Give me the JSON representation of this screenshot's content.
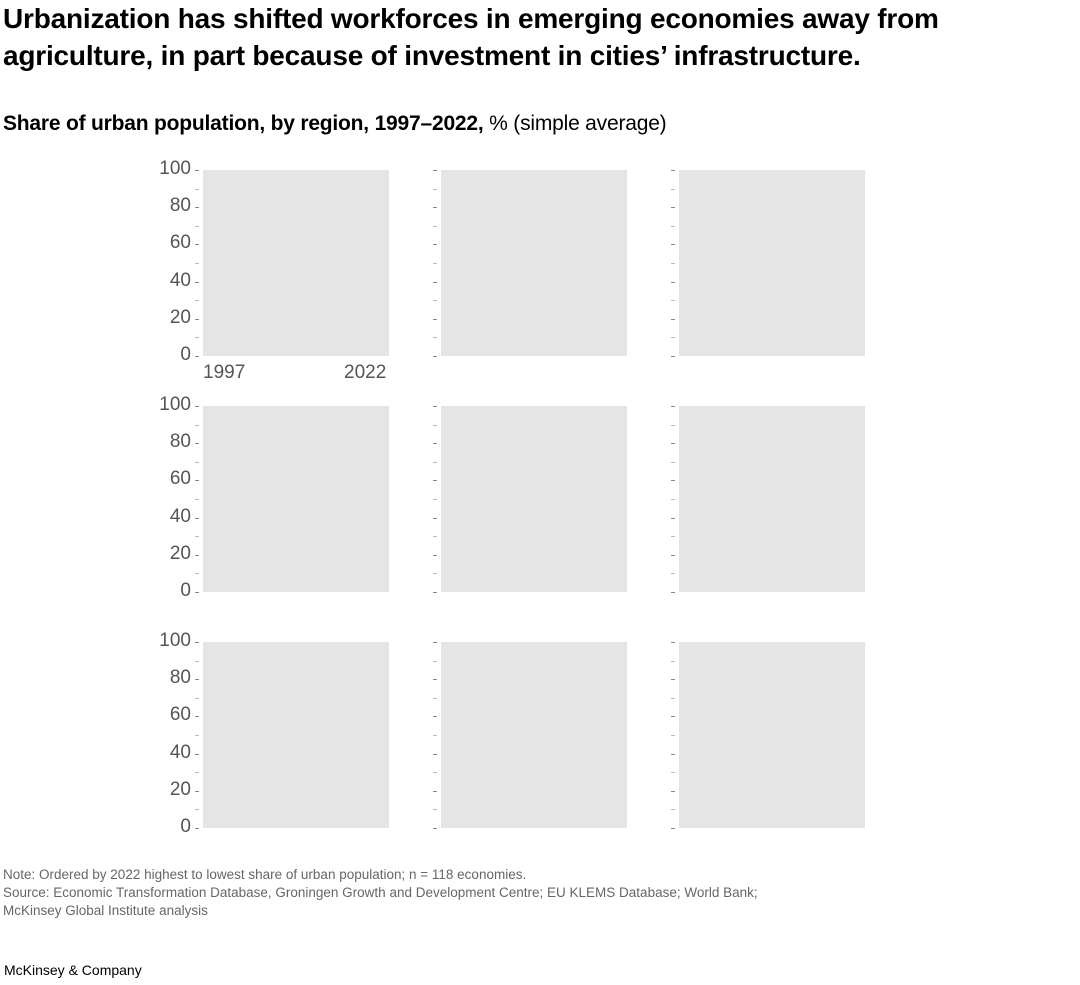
{
  "header": {
    "title": "Urbanization has shifted workforces in emerging economies away from agriculture, in part because of investment in cities’ infrastructure.",
    "subtitle_bold": "Share of urban population, by region, 1997–2022,",
    "subtitle_light": " % (simple average)"
  },
  "axis": {
    "y_ticks": [
      "100",
      "80",
      "60",
      "40",
      "20",
      "0"
    ],
    "x_start": "1997",
    "x_end": "2022"
  },
  "footer": {
    "note": "Note: Ordered by 2022 highest to lowest share of urban population; n = 118 economies.",
    "source_line1": "Source: Economic Transformation Database, Groningen Growth and Development Centre; EU KLEMS Database; World Bank;",
    "source_line2": "McKinsey Global Institute analysis",
    "brand": "McKinsey & Company"
  },
  "colors": {
    "panel_bg": "#e5e5e5",
    "axis_text": "#555555",
    "note_text": "#666666"
  },
  "chart_data": {
    "type": "line",
    "title": "Share of urban population, by region, 1997–2022, % (simple average)",
    "layout": "3x3 small multiples",
    "xlabel": "",
    "ylabel": "%",
    "x": [
      "1997",
      "2022"
    ],
    "ylim": [
      0,
      100
    ],
    "y_ticks": [
      0,
      20,
      40,
      60,
      80,
      100
    ],
    "grid": false,
    "legend": null,
    "panels": [
      {
        "row": 1,
        "col": 1,
        "label": "",
        "series": []
      },
      {
        "row": 1,
        "col": 2,
        "label": "",
        "series": []
      },
      {
        "row": 1,
        "col": 3,
        "label": "",
        "series": []
      },
      {
        "row": 2,
        "col": 1,
        "label": "",
        "series": []
      },
      {
        "row": 2,
        "col": 2,
        "label": "",
        "series": []
      },
      {
        "row": 2,
        "col": 3,
        "label": "",
        "series": []
      },
      {
        "row": 3,
        "col": 1,
        "label": "",
        "series": []
      },
      {
        "row": 3,
        "col": 2,
        "label": "",
        "series": []
      },
      {
        "row": 3,
        "col": 3,
        "label": "",
        "series": []
      }
    ],
    "annotations": [
      "Panels render as empty gray plot areas; no data lines visible"
    ]
  }
}
